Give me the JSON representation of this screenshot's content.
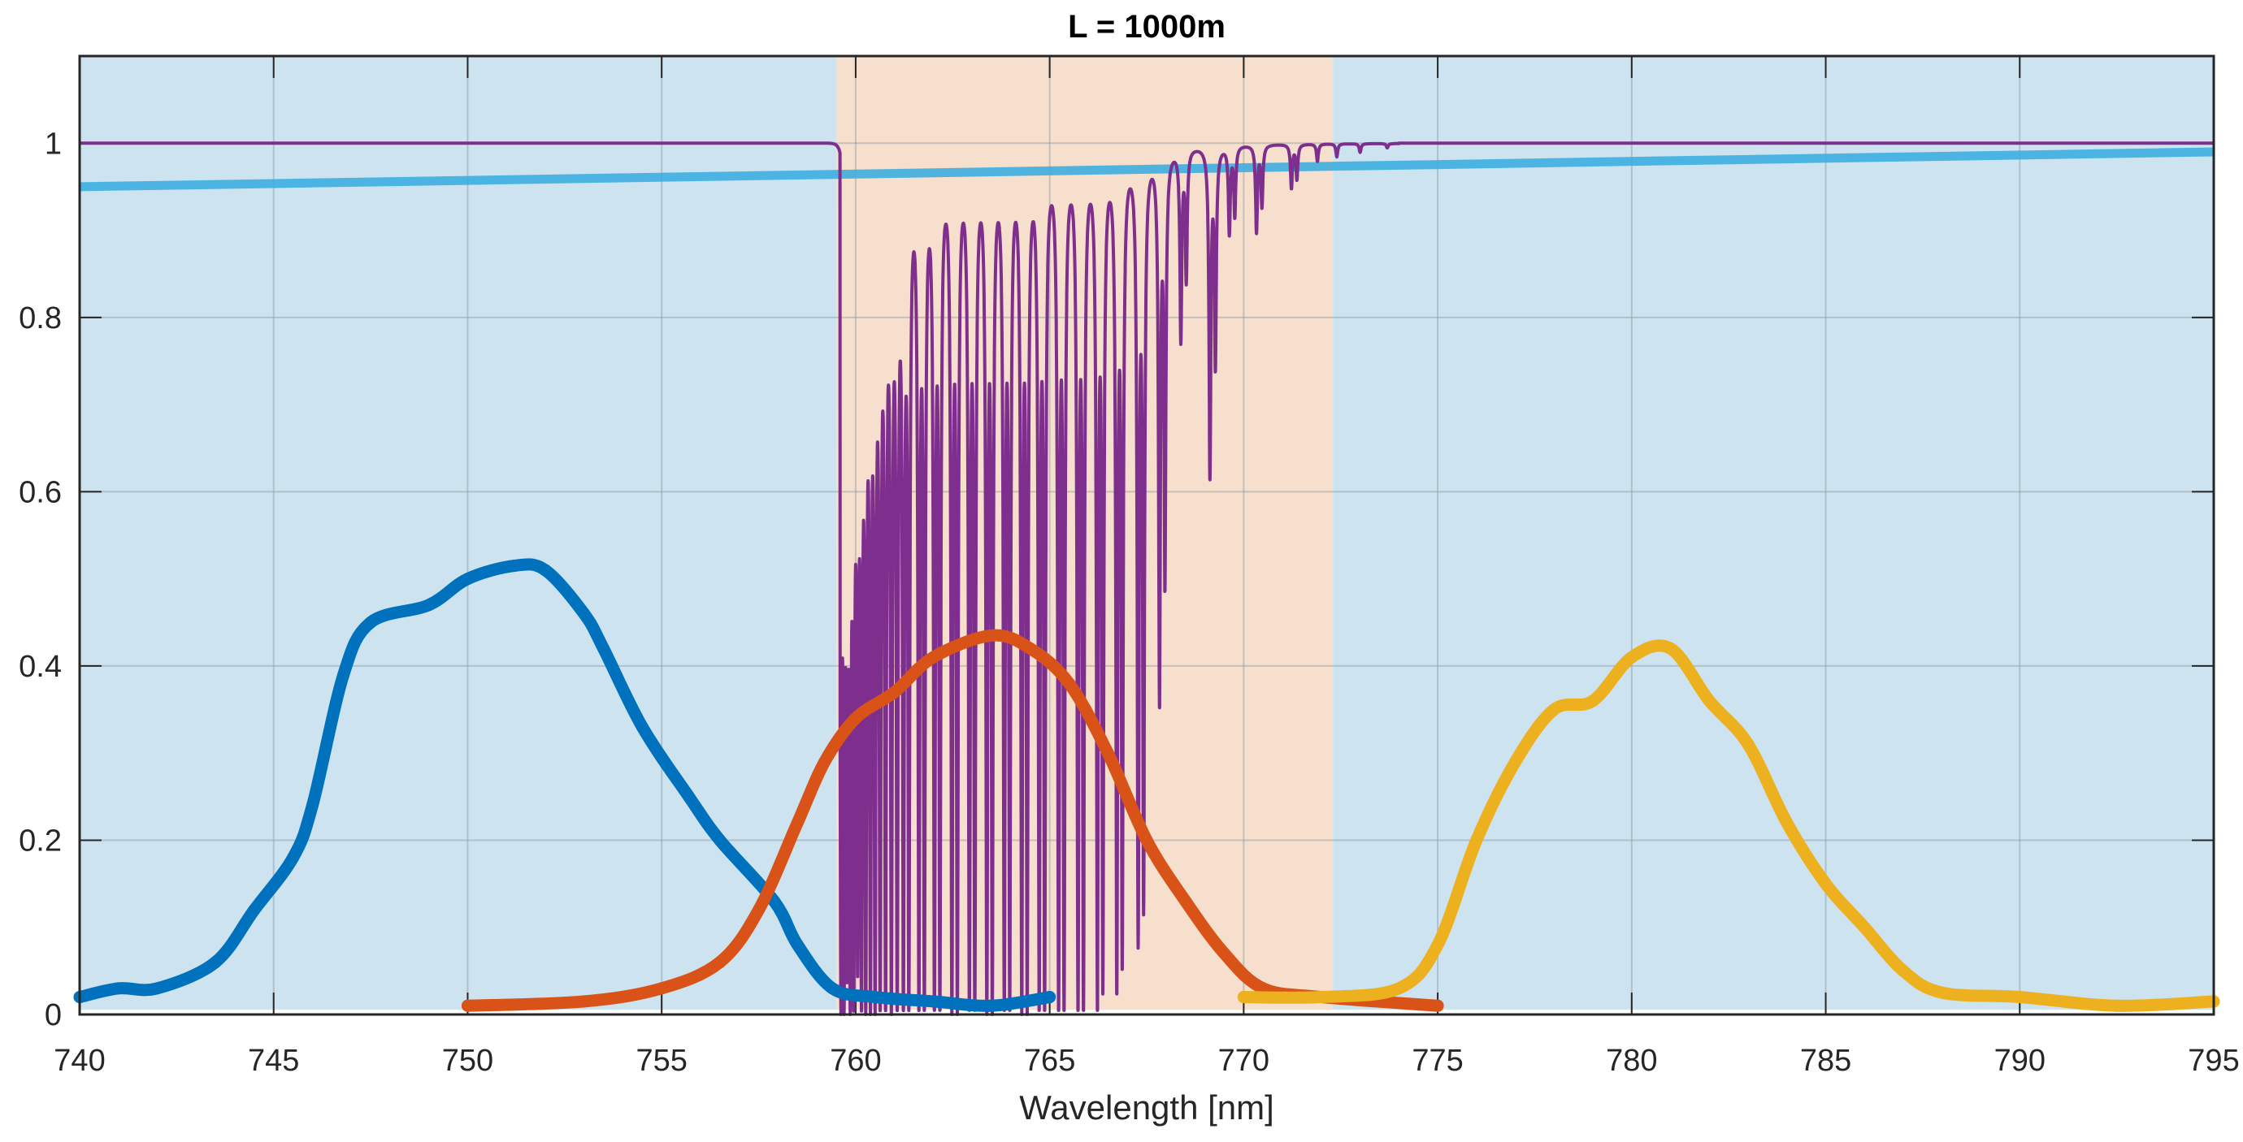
{
  "chart_data": {
    "type": "line",
    "title": "L = 1000m",
    "xlabel": "Wavelength [nm]",
    "ylabel": "",
    "xlim": [
      740,
      795
    ],
    "ylim": [
      0,
      1.1
    ],
    "grid": true,
    "xticks": [
      "740",
      "745",
      "750",
      "755",
      "760",
      "765",
      "770",
      "775",
      "780",
      "785",
      "790",
      "795"
    ],
    "yticks": [
      "0",
      "0.2",
      "0.4",
      "0.6",
      "0.8",
      "1"
    ],
    "background_regions": [
      {
        "x": [
          740,
          759.5
        ],
        "color": "#cde3ef"
      },
      {
        "x": [
          759.5,
          772.3
        ],
        "color": "#f6dfcc"
      },
      {
        "x": [
          772.3,
          795
        ],
        "color": "#cde3ef"
      }
    ],
    "series": [
      {
        "color": "#3daee0",
        "style": "straight line",
        "x": [
          740,
          795
        ],
        "y": [
          0.95,
          0.99
        ]
      },
      {
        "color": "#7e2f8e",
        "style": "absorption spectrum, baseline 1",
        "absorption_lines": [
          [
            759.62,
            0
          ],
          [
            759.7,
            0
          ],
          [
            759.78,
            0.05
          ],
          [
            759.86,
            0
          ],
          [
            759.95,
            0
          ],
          [
            760.05,
            0.05
          ],
          [
            760.15,
            0
          ],
          [
            760.26,
            0
          ],
          [
            760.38,
            0
          ],
          [
            760.5,
            0
          ],
          [
            760.63,
            0
          ],
          [
            760.77,
            0
          ],
          [
            760.92,
            0
          ],
          [
            761.07,
            0
          ],
          [
            761.23,
            0
          ],
          [
            761.37,
            0
          ],
          [
            761.63,
            0
          ],
          [
            761.77,
            0
          ],
          [
            762.03,
            0
          ],
          [
            762.17,
            0
          ],
          [
            762.48,
            0
          ],
          [
            762.62,
            0
          ],
          [
            762.93,
            0
          ],
          [
            763.07,
            0
          ],
          [
            763.38,
            0
          ],
          [
            763.52,
            0
          ],
          [
            763.83,
            0
          ],
          [
            763.97,
            0
          ],
          [
            764.28,
            0
          ],
          [
            764.42,
            0
          ],
          [
            764.73,
            0
          ],
          [
            764.87,
            0
          ],
          [
            765.23,
            0
          ],
          [
            765.37,
            0
          ],
          [
            765.73,
            0
          ],
          [
            765.87,
            0
          ],
          [
            766.23,
            0
          ],
          [
            766.37,
            0.02
          ],
          [
            766.73,
            0.02
          ],
          [
            766.87,
            0.05
          ],
          [
            767.28,
            0.08
          ],
          [
            767.42,
            0.12
          ],
          [
            767.83,
            0.36
          ],
          [
            767.97,
            0.5
          ],
          [
            768.38,
            0.78
          ],
          [
            768.52,
            0.85
          ],
          [
            769.13,
            0.62
          ],
          [
            769.27,
            0.75
          ],
          [
            769.63,
            0.9
          ],
          [
            769.77,
            0.92
          ],
          [
            770.33,
            0.9
          ],
          [
            770.47,
            0.93
          ],
          [
            771.23,
            0.95
          ],
          [
            771.37,
            0.96
          ],
          [
            771.9,
            0.98
          ],
          [
            772.4,
            0.985
          ],
          [
            773.0,
            0.99
          ],
          [
            773.7,
            0.995
          ]
        ]
      },
      {
        "color": "#0072bd",
        "x": [
          740,
          741,
          742,
          743.5,
          744.5,
          745.5,
          746,
          746.8,
          747.5,
          749,
          750,
          751.2,
          752,
          753,
          753.5,
          754.5,
          755.7,
          756.5,
          757.9,
          758.5,
          759.4,
          760.5,
          762,
          763.5,
          765
        ],
        "y": [
          0.02,
          0.03,
          0.03,
          0.06,
          0.12,
          0.18,
          0.24,
          0.39,
          0.45,
          0.47,
          0.5,
          0.515,
          0.51,
          0.46,
          0.42,
          0.33,
          0.25,
          0.2,
          0.13,
          0.08,
          0.03,
          0.02,
          0.015,
          0.01,
          0.02
        ]
      },
      {
        "color": "#d95319",
        "x": [
          750,
          753,
          755,
          756.5,
          757.5,
          758.5,
          759.2,
          760,
          761,
          762,
          763.5,
          764.5,
          765.5,
          766.5,
          767.5,
          768.5,
          769.5,
          770.5,
          772,
          775
        ],
        "y": [
          0.01,
          0.015,
          0.03,
          0.06,
          0.12,
          0.22,
          0.29,
          0.34,
          0.37,
          0.41,
          0.435,
          0.42,
          0.38,
          0.3,
          0.2,
          0.13,
          0.07,
          0.03,
          0.02,
          0.01
        ]
      },
      {
        "color": "#edb120",
        "x": [
          770,
          772,
          774,
          775,
          776,
          777,
          778,
          779,
          780,
          781,
          782,
          783,
          784,
          785,
          786,
          787,
          788,
          790,
          792.5,
          795
        ],
        "y": [
          0.02,
          0.02,
          0.03,
          0.08,
          0.2,
          0.29,
          0.35,
          0.36,
          0.41,
          0.42,
          0.36,
          0.31,
          0.22,
          0.15,
          0.1,
          0.05,
          0.025,
          0.02,
          0.01,
          0.015
        ]
      }
    ]
  }
}
